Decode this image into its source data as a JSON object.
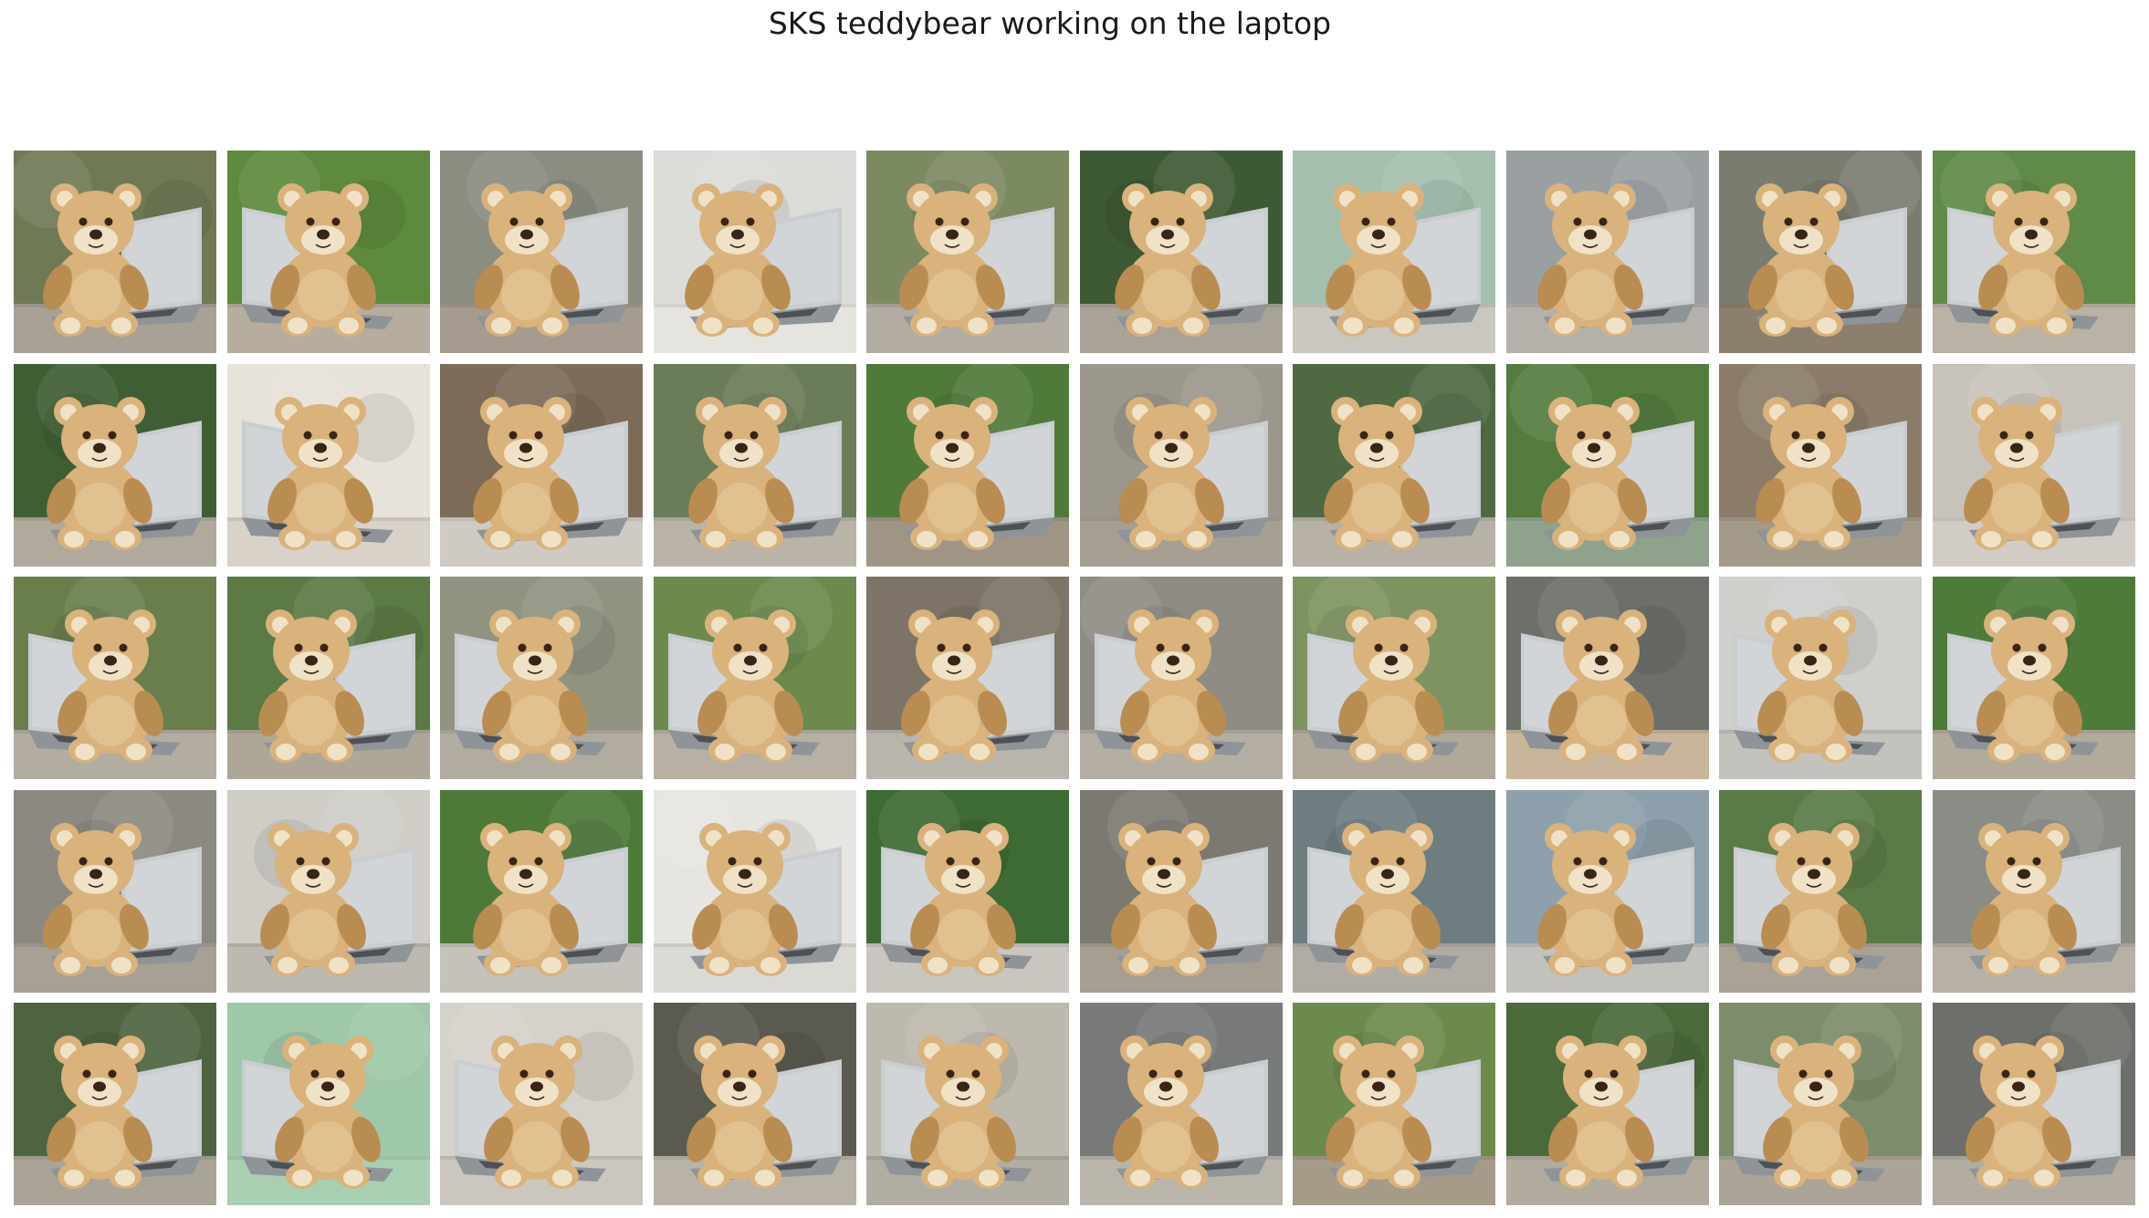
{
  "title": "SKS teddybear working on the laptop",
  "grid": {
    "rows": 5,
    "cols": 10
  },
  "palette": {
    "fur": "#d9b27c",
    "fur_shade": "#b98c52",
    "muzzle": "#efe2c6",
    "nose": "#3a2418",
    "laptop": "#c9cdd0",
    "laptop_dark": "#8f9499",
    "keyboard": "#3c3f42"
  },
  "tiles": [
    {
      "bg": "#6f7a55",
      "ground": "#a9a196",
      "laptop_side": "right",
      "bear_shift": -10
    },
    {
      "bg": "#5d8a3c",
      "ground": "#b6ad9e",
      "laptop_side": "left",
      "bear_shift": 5
    },
    {
      "bg": "#8a8d80",
      "ground": "#a59b8e",
      "laptop_side": "right",
      "bear_shift": -5
    },
    {
      "bg": "#dcdcd8",
      "ground": "#e6e4df",
      "laptop_side": "right",
      "bear_shift": -8
    },
    {
      "bg": "#7c8a62",
      "ground": "#b2aca2",
      "laptop_side": "right",
      "bear_shift": -6
    },
    {
      "bg": "#3e5a34",
      "ground": "#a8a297",
      "laptop_side": "right",
      "bear_shift": -4
    },
    {
      "bg": "#a4bfae",
      "ground": "#c9c7bf",
      "laptop_side": "right",
      "bear_shift": -6
    },
    {
      "bg": "#9aa0a2",
      "ground": "#b4b1aa",
      "laptop_side": "right",
      "bear_shift": -8
    },
    {
      "bg": "#7a7c70",
      "ground": "#8c7f6e",
      "laptop_side": "right",
      "bear_shift": -10
    },
    {
      "bg": "#5f8a48",
      "ground": "#b9b2a5",
      "laptop_side": "left",
      "bear_shift": 8
    },
    {
      "bg": "#3f5e33",
      "ground": "#b0a99c",
      "laptop_side": "right",
      "bear_shift": -6
    },
    {
      "bg": "#e7e2da",
      "ground": "#d8d2c8",
      "laptop_side": "left",
      "bear_shift": 2
    },
    {
      "bg": "#7c6b58",
      "ground": "#cfcbc4",
      "laptop_side": "right",
      "bear_shift": -6
    },
    {
      "bg": "#6b7c58",
      "ground": "#b9b3a8",
      "laptop_side": "right",
      "bear_shift": -4
    },
    {
      "bg": "#4f7a3a",
      "ground": "#a09484",
      "laptop_side": "right",
      "bear_shift": -6
    },
    {
      "bg": "#9c978c",
      "ground": "#a59f92",
      "laptop_side": "right",
      "bear_shift": 0
    },
    {
      "bg": "#4f6a42",
      "ground": "#b7b1a6",
      "laptop_side": "right",
      "bear_shift": -8
    },
    {
      "bg": "#547c3f",
      "ground": "#8fa28c",
      "laptop_side": "right",
      "bear_shift": -4
    },
    {
      "bg": "#8b7c6a",
      "ground": "#a49a8a",
      "laptop_side": "right",
      "bear_shift": -2
    },
    {
      "bg": "#c8c3ba",
      "ground": "#d1cdc6",
      "laptop_side": "right",
      "bear_shift": -8
    },
    {
      "bg": "#6a7e4c",
      "ground": "#b3aca0",
      "laptop_side": "left",
      "bear_shift": 6
    },
    {
      "bg": "#5b7a44",
      "ground": "#aea697",
      "laptop_side": "right",
      "bear_shift": -8
    },
    {
      "bg": "#8f9380",
      "ground": "#b2ab9f",
      "laptop_side": "left",
      "bear_shift": 4
    },
    {
      "bg": "#6b8a4c",
      "ground": "#b7b0a3",
      "laptop_side": "left",
      "bear_shift": 6
    },
    {
      "bg": "#7d7467",
      "ground": "#b9b4ac",
      "laptop_side": "right",
      "bear_shift": -4
    },
    {
      "bg": "#8f8c84",
      "ground": "#b4aea3",
      "laptop_side": "left",
      "bear_shift": 2
    },
    {
      "bg": "#7e9460",
      "ground": "#b0a898",
      "laptop_side": "left",
      "bear_shift": 8
    },
    {
      "bg": "#6c6f6a",
      "ground": "#c9b69a",
      "laptop_side": "left",
      "bear_shift": 4
    },
    {
      "bg": "#cfcfcc",
      "ground": "#c4c2bd",
      "laptop_side": "left",
      "bear_shift": 0
    },
    {
      "bg": "#4e7a3a",
      "ground": "#b2aa9a",
      "laptop_side": "left",
      "bear_shift": 6
    },
    {
      "bg": "#8c8a80",
      "ground": "#a7a095",
      "laptop_side": "right",
      "bear_shift": -10
    },
    {
      "bg": "#cfcdc6",
      "ground": "#bdb9b1",
      "laptop_side": "right",
      "bear_shift": -6
    },
    {
      "bg": "#4d7a38",
      "ground": "#c5c2bc",
      "laptop_side": "right",
      "bear_shift": -6
    },
    {
      "bg": "#e6e5e1",
      "ground": "#dbd9d4",
      "laptop_side": "right",
      "bear_shift": 0
    },
    {
      "bg": "#3e6a34",
      "ground": "#c9c6bf",
      "laptop_side": "left",
      "bear_shift": 6
    },
    {
      "bg": "#7c7a70",
      "ground": "#a59e91",
      "laptop_side": "right",
      "bear_shift": -8
    },
    {
      "bg": "#6e7d80",
      "ground": "#b1aca3",
      "laptop_side": "left",
      "bear_shift": 4
    },
    {
      "bg": "#8ea0ac",
      "ground": "#c3c1bc",
      "laptop_side": "right",
      "bear_shift": -8
    },
    {
      "bg": "#5a7a46",
      "ground": "#aaa295",
      "laptop_side": "left",
      "bear_shift": 4
    },
    {
      "bg": "#8a8c86",
      "ground": "#b6b0a5",
      "laptop_side": "right",
      "bear_shift": 0
    },
    {
      "bg": "#4e6440",
      "ground": "#aaa497",
      "laptop_side": "right",
      "bear_shift": -6
    },
    {
      "bg": "#9fc8a8",
      "ground": "#a8d0b0",
      "laptop_side": "left",
      "bear_shift": 10
    },
    {
      "bg": "#d5d2cb",
      "ground": "#cbc7bf",
      "laptop_side": "left",
      "bear_shift": 6
    },
    {
      "bg": "#5b5a50",
      "ground": "#b9b2a6",
      "laptop_side": "right",
      "bear_shift": -6
    },
    {
      "bg": "#bdb9ae",
      "ground": "#b2ada2",
      "laptop_side": "left",
      "bear_shift": 6
    },
    {
      "bg": "#777a78",
      "ground": "#bab5ab",
      "laptop_side": "right",
      "bear_shift": -6
    },
    {
      "bg": "#6c8a4c",
      "ground": "#a69b88",
      "laptop_side": "right",
      "bear_shift": -6
    },
    {
      "bg": "#4a6a3a",
      "ground": "#b1aa9d",
      "laptop_side": "right",
      "bear_shift": 4
    },
    {
      "bg": "#7d8c6a",
      "ground": "#aba497",
      "laptop_side": "left",
      "bear_shift": 6
    },
    {
      "bg": "#6d6f6a",
      "ground": "#b2aca1",
      "laptop_side": "right",
      "bear_shift": -6
    }
  ]
}
